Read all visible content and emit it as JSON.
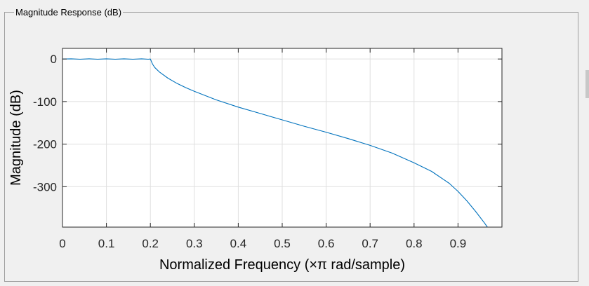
{
  "panel": {
    "title": "Magnitude Response (dB)"
  },
  "chart_data": {
    "type": "line",
    "xlabel": "Normalized Frequency (×π rad/sample)",
    "ylabel": "Magnitude (dB)",
    "xlim": [
      0,
      1
    ],
    "ylim": [
      -395,
      25
    ],
    "grid": true,
    "xticks": [
      0,
      0.1,
      0.2,
      0.3,
      0.4,
      0.5,
      0.6,
      0.7,
      0.8,
      0.9
    ],
    "xtick_labels": [
      "0",
      "0.1",
      "0.2",
      "0.3",
      "0.4",
      "0.5",
      "0.6",
      "0.7",
      "0.8",
      "0.9"
    ],
    "yticks": [
      0,
      -100,
      -200,
      -300
    ],
    "ytick_labels": [
      "0",
      "-100",
      "-200",
      "-300"
    ],
    "series": [
      {
        "color": "#0072bd",
        "x": [
          0,
          0.02,
          0.04,
          0.06,
          0.08,
          0.1,
          0.12,
          0.14,
          0.16,
          0.18,
          0.195,
          0.2,
          0.205,
          0.21,
          0.22,
          0.24,
          0.26,
          0.28,
          0.3,
          0.35,
          0.4,
          0.45,
          0.5,
          0.55,
          0.6,
          0.65,
          0.7,
          0.75,
          0.8,
          0.84,
          0.88,
          0.9,
          0.92,
          0.94,
          0.96,
          0.967
        ],
        "y": [
          0,
          0.5,
          -0.5,
          0.5,
          -0.5,
          0.5,
          -0.5,
          0.5,
          -0.5,
          0.5,
          -0.5,
          0,
          -12,
          -20,
          -30,
          -45,
          -57,
          -67,
          -76,
          -96,
          -113,
          -128,
          -143,
          -158,
          -172,
          -187,
          -203,
          -221,
          -244,
          -264,
          -292,
          -311,
          -333,
          -358,
          -385,
          -395
        ]
      }
    ]
  }
}
